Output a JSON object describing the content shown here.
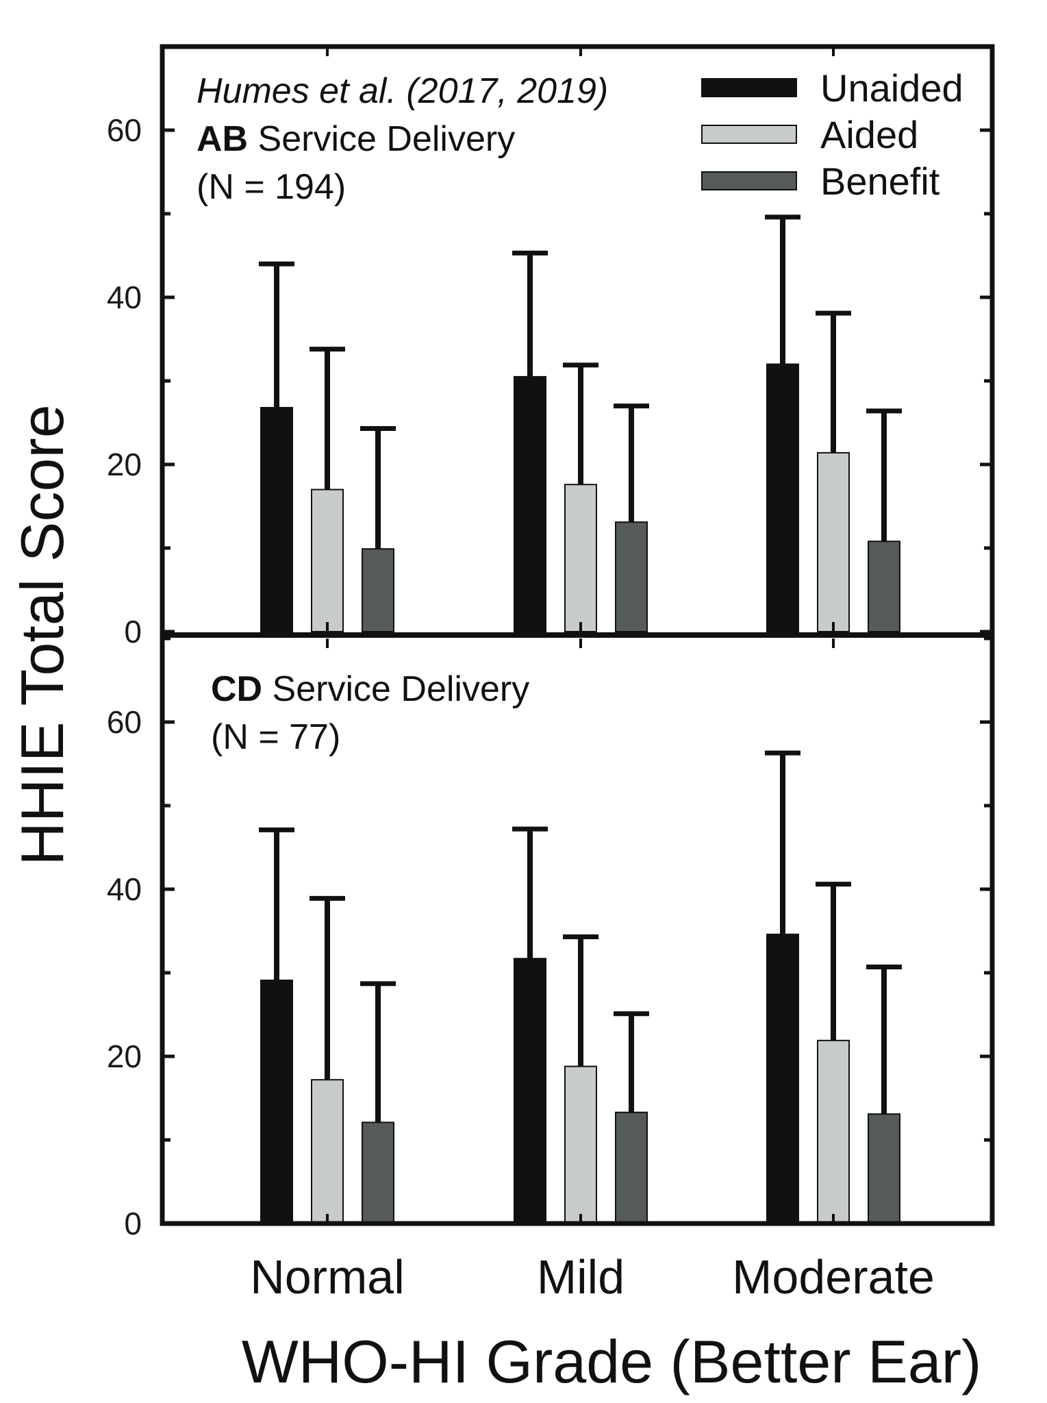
{
  "chart_data": {
    "type": "bar",
    "ylabel": "HHIE Total Score",
    "xlabel": "WHO-HI Grade (Better Ear)",
    "categories": [
      "Normal",
      "Mild",
      "Moderate"
    ],
    "ylim": [
      0,
      70
    ],
    "yticks": [
      "0",
      "20",
      "40",
      "60"
    ],
    "legend": {
      "position": "top-right",
      "entries": [
        {
          "name": "Unaided",
          "color": "#111111"
        },
        {
          "name": "Aided",
          "color": "#c7ccca"
        },
        {
          "name": "Benefit",
          "color": "#555b5a"
        }
      ]
    },
    "panels": [
      {
        "citation": "Humes et al. (2017, 2019)",
        "label_bold": "AB",
        "label_rest": "Service Delivery",
        "n_label": "(N = 194)",
        "series": [
          {
            "name": "Unaided",
            "values": [
              26.8,
              30.5,
              32.0
            ],
            "error": [
              17.2,
              14.8,
              17.6
            ]
          },
          {
            "name": "Aided",
            "values": [
              17.0,
              17.6,
              21.4
            ],
            "error": [
              16.8,
              14.3,
              16.7
            ]
          },
          {
            "name": "Benefit",
            "values": [
              9.9,
              13.1,
              10.8
            ],
            "error": [
              14.4,
              13.9,
              15.6
            ]
          }
        ]
      },
      {
        "citation": "",
        "label_bold": "CD",
        "label_rest": "Service Delivery",
        "n_label": "(N = 77)",
        "series": [
          {
            "name": "Unaided",
            "values": [
              29.1,
              31.7,
              34.6
            ],
            "error": [
              18.0,
              15.5,
              21.7
            ]
          },
          {
            "name": "Aided",
            "values": [
              17.2,
              18.8,
              21.9
            ],
            "error": [
              21.7,
              15.5,
              18.7
            ]
          },
          {
            "name": "Benefit",
            "values": [
              12.1,
              13.3,
              13.1
            ],
            "error": [
              16.6,
              11.8,
              17.6
            ]
          }
        ]
      }
    ]
  }
}
